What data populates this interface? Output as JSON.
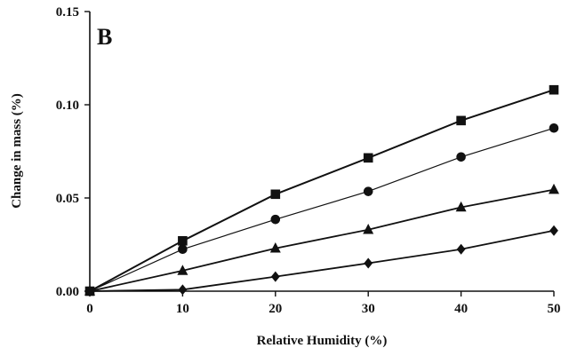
{
  "chart_data": {
    "type": "line",
    "panel_label": "B",
    "title": "",
    "xlabel": "Relative Humidity (%)",
    "ylabel": "Change in mass (%)",
    "xlim": [
      0,
      50
    ],
    "ylim": [
      0,
      0.15
    ],
    "x_ticks": [
      "0",
      "10",
      "20",
      "30",
      "40",
      "50"
    ],
    "y_ticks": [
      "0.00",
      "0.05",
      "0.10",
      "0.15"
    ],
    "grid": false,
    "legend": "none",
    "x": [
      0,
      10,
      20,
      30,
      40,
      50
    ],
    "series": [
      {
        "marker": "square",
        "values": [
          0.0,
          0.027,
          0.052,
          0.0715,
          0.0915,
          0.108
        ]
      },
      {
        "marker": "circle",
        "values": [
          0.0,
          0.0225,
          0.0385,
          0.0535,
          0.072,
          0.0875
        ]
      },
      {
        "marker": "triangle",
        "values": [
          0.0,
          0.011,
          0.023,
          0.033,
          0.045,
          0.0545
        ]
      },
      {
        "marker": "diamond",
        "values": [
          0.0,
          0.0008,
          0.0078,
          0.015,
          0.0225,
          0.0325
        ]
      }
    ]
  }
}
